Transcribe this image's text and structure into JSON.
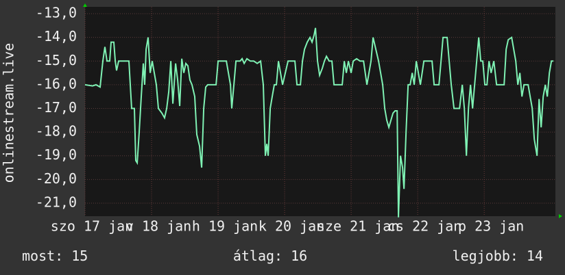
{
  "chart_data": {
    "type": "line",
    "y_label": "onlinestream.live",
    "color": "#7ff2b4",
    "grid": true,
    "ylim": [
      -21.55,
      -12.71
    ],
    "yticks": [
      {
        "value": -13,
        "label": "-13,0"
      },
      {
        "value": -14,
        "label": "-14,0"
      },
      {
        "value": -15,
        "label": "-15,0"
      },
      {
        "value": -16,
        "label": "-16,0"
      },
      {
        "value": -17,
        "label": "-17,0"
      },
      {
        "value": -18,
        "label": "-18,0"
      },
      {
        "value": -19,
        "label": "-19,0"
      },
      {
        "value": -20,
        "label": "-20,0"
      },
      {
        "value": -21,
        "label": "-21,0"
      }
    ],
    "xlim": [
      17,
      24.07
    ],
    "xticks": [
      {
        "value": 17,
        "label": "szo 17 jan"
      },
      {
        "value": 18,
        "label": "v 18 jan"
      },
      {
        "value": 19,
        "label": "h 19 jan"
      },
      {
        "value": 20,
        "label": "k 20 jan"
      },
      {
        "value": 21,
        "label": "sze 21 jan"
      },
      {
        "value": 22,
        "label": "cs 22 jan"
      },
      {
        "value": 23,
        "label": "p 23 jan"
      }
    ],
    "x": [
      17,
      17.113,
      17.165,
      17.227,
      17.268,
      17.299,
      17.33,
      17.371,
      17.392,
      17.433,
      17.454,
      17.474,
      17.505,
      17.66,
      17.68,
      17.701,
      17.742,
      17.763,
      17.784,
      17.814,
      17.845,
      17.876,
      17.897,
      17.918,
      17.948,
      17.979,
      18.01,
      18.041,
      18.072,
      18.103,
      18.155,
      18.196,
      18.227,
      18.258,
      18.289,
      18.32,
      18.361,
      18.392,
      18.423,
      18.454,
      18.485,
      18.515,
      18.546,
      18.577,
      18.608,
      18.649,
      18.68,
      18.722,
      18.753,
      18.784,
      18.814,
      18.845,
      18.969,
      19,
      19.041,
      19.124,
      19.155,
      19.186,
      19.206,
      19.237,
      19.268,
      19.33,
      19.361,
      19.392,
      19.433,
      19.485,
      19.536,
      19.588,
      19.639,
      19.68,
      19.711,
      19.732,
      19.753,
      19.784,
      19.814,
      19.845,
      19.876,
      19.907,
      19.938,
      19.969,
      20.052,
      20.155,
      20.186,
      20.237,
      20.268,
      20.299,
      20.34,
      20.381,
      20.412,
      20.443,
      20.464,
      20.495,
      20.526,
      20.567,
      20.598,
      20.629,
      20.67,
      20.711,
      20.742,
      20.784,
      20.866,
      20.897,
      20.928,
      20.959,
      21,
      21.031,
      21.082,
      21.134,
      21.186,
      21.237,
      21.299,
      21.33,
      21.371,
      21.412,
      21.443,
      21.474,
      21.505,
      21.536,
      21.567,
      21.598,
      21.629,
      21.66,
      21.691,
      21.711,
      21.742,
      21.773,
      21.794,
      21.825,
      21.856,
      21.887,
      21.918,
      21.948,
      21.979,
      22.01,
      22.041,
      22.093,
      22.216,
      22.247,
      22.32,
      22.351,
      22.381,
      22.443,
      22.474,
      22.505,
      22.546,
      22.629,
      22.67,
      22.701,
      22.732,
      22.763,
      22.794,
      22.825,
      22.856,
      22.887,
      22.918,
      22.948,
      22.979,
      23.01,
      23.041,
      23.072,
      23.103,
      23.144,
      23.186,
      23.299,
      23.33,
      23.361,
      23.412,
      23.443,
      23.474,
      23.505,
      23.536,
      23.567,
      23.598,
      23.66,
      23.691,
      23.722,
      23.753,
      23.794,
      23.825,
      23.856,
      23.887,
      23.918,
      23.948,
      23.979,
      24.01,
      24.041
    ],
    "values": [
      -16,
      -16.05,
      -16,
      -16.1,
      -15,
      -14.4,
      -15,
      -15,
      -14.2,
      -14.2,
      -15,
      -15.4,
      -15,
      -15,
      -16,
      -17,
      -17,
      -19.2,
      -19.3,
      -18,
      -16.5,
      -15.1,
      -16,
      -14.5,
      -14,
      -15.5,
      -15,
      -15.5,
      -16,
      -17,
      -17.2,
      -17.4,
      -17,
      -16.3,
      -15,
      -16.8,
      -15.1,
      -15.8,
      -16.9,
      -14.9,
      -15.5,
      -15.1,
      -15.2,
      -15.8,
      -16,
      -16.5,
      -18.1,
      -18.6,
      -19.5,
      -17,
      -16.1,
      -16,
      -16,
      -15,
      -15,
      -15,
      -15.5,
      -16,
      -17,
      -16,
      -15,
      -15,
      -14.9,
      -15.1,
      -14.9,
      -15,
      -15,
      -15.1,
      -15,
      -16,
      -19,
      -18.5,
      -19,
      -17,
      -16.5,
      -16,
      -16,
      -15,
      -15.5,
      -16,
      -15,
      -15,
      -16,
      -16,
      -15,
      -14.5,
      -14.2,
      -14,
      -14.2,
      -13.9,
      -13.6,
      -15,
      -15.6,
      -15.3,
      -15,
      -14.8,
      -15,
      -15,
      -16,
      -16,
      -16,
      -15,
      -15.5,
      -15,
      -15.5,
      -15,
      -14.9,
      -15,
      -15,
      -16,
      -15,
      -14,
      -14.5,
      -15,
      -15.5,
      -16,
      -17,
      -17.5,
      -17.8,
      -17.5,
      -17.2,
      -17.1,
      -17.1,
      -21.6,
      -19,
      -19.5,
      -20.4,
      -18,
      -16,
      -16,
      -15.5,
      -16,
      -15,
      -15.5,
      -16,
      -15,
      -15,
      -16,
      -16,
      -15,
      -14,
      -14,
      -15,
      -16,
      -17,
      -17,
      -16,
      -17,
      -19,
      -17,
      -16,
      -17,
      -16,
      -15,
      -14,
      -15,
      -15,
      -16,
      -16,
      -15,
      -15.5,
      -15,
      -16,
      -16,
      -14.5,
      -14.1,
      -14,
      -14.5,
      -15,
      -16,
      -15.5,
      -16.5,
      -16,
      -16,
      -16.5,
      -17,
      -18.3,
      -19,
      -16.6,
      -17.8,
      -16.5,
      -16,
      -16.5,
      -15.5,
      -15,
      -15
    ]
  },
  "stats": [
    {
      "label": "most:",
      "value": 15
    },
    {
      "label": "átlag:",
      "value": 16
    },
    {
      "label": "legjobb:",
      "value": 14
    }
  ]
}
